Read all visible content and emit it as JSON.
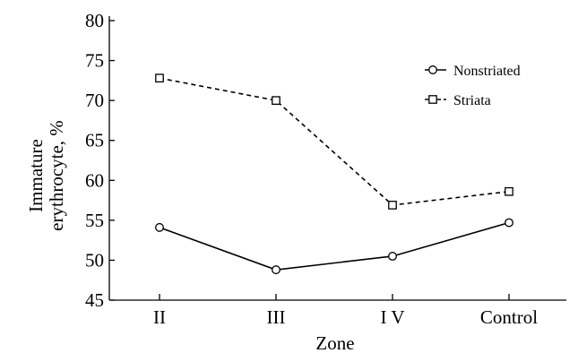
{
  "chart_data": {
    "type": "line",
    "categories": [
      "II",
      "III",
      "I V",
      "Control"
    ],
    "series": [
      {
        "name": "Nonstriated",
        "values": [
          54.1,
          48.8,
          50.5,
          54.7
        ],
        "marker": "circle",
        "line_style": "solid",
        "color": "#000000"
      },
      {
        "name": "Striata",
        "values": [
          72.8,
          70.0,
          56.9,
          58.6
        ],
        "marker": "square",
        "line_style": "dashed",
        "color": "#000000"
      }
    ],
    "xlabel": "Zone",
    "ylabel": [
      "Immature",
      "erythrocyte, %"
    ],
    "ylim": [
      45,
      80
    ],
    "yticks": [
      "45",
      "50",
      "55",
      "60",
      "65",
      "70",
      "75",
      "80"
    ],
    "grid": false,
    "legend_position": "top-right"
  }
}
